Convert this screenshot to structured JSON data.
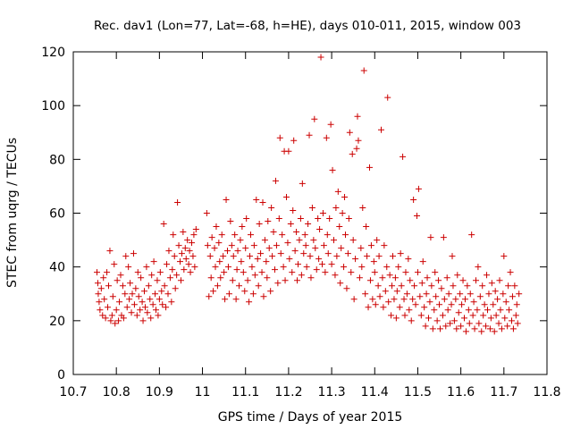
{
  "chart_data": {
    "type": "scatter",
    "title": "Rec. dav1 (Lon=77, Lat=-68, h=HE), days 010-011, 2015, window 003",
    "xlabel": "GPS time / Days of year 2015",
    "ylabel": "STEC from uqrg / TECUs",
    "xlim": [
      10.7,
      11.8
    ],
    "ylim": [
      0,
      120
    ],
    "xticks": [
      "10.7",
      "10.8",
      "10.9",
      "11",
      "11.1",
      "11.2",
      "11.3",
      "11.4",
      "11.5",
      "11.6",
      "11.7",
      "11.8"
    ],
    "yticks": [
      "0",
      "20",
      "40",
      "60",
      "80",
      "100",
      "120"
    ],
    "grid": false,
    "marker": "plus",
    "color": "#cc0000",
    "points": [
      [
        10.755,
        38
      ],
      [
        10.757,
        34
      ],
      [
        10.758,
        30
      ],
      [
        10.76,
        27
      ],
      [
        10.762,
        24
      ],
      [
        10.765,
        32
      ],
      [
        10.768,
        22
      ],
      [
        10.77,
        36
      ],
      [
        10.772,
        28
      ],
      [
        10.775,
        21
      ],
      [
        10.778,
        38
      ],
      [
        10.78,
        25
      ],
      [
        10.782,
        33
      ],
      [
        10.785,
        46
      ],
      [
        10.787,
        20
      ],
      [
        10.79,
        22
      ],
      [
        10.792,
        29
      ],
      [
        10.795,
        41
      ],
      [
        10.797,
        19
      ],
      [
        10.8,
        24
      ],
      [
        10.802,
        35
      ],
      [
        10.805,
        20
      ],
      [
        10.807,
        27
      ],
      [
        10.81,
        37
      ],
      [
        10.812,
        22
      ],
      [
        10.815,
        33
      ],
      [
        10.817,
        21
      ],
      [
        10.82,
        30
      ],
      [
        10.822,
        44
      ],
      [
        10.825,
        25
      ],
      [
        10.828,
        40
      ],
      [
        10.83,
        28
      ],
      [
        10.832,
        34
      ],
      [
        10.835,
        23
      ],
      [
        10.837,
        30
      ],
      [
        10.84,
        45
      ],
      [
        10.842,
        26
      ],
      [
        10.845,
        32
      ],
      [
        10.848,
        22
      ],
      [
        10.85,
        38
      ],
      [
        10.852,
        29
      ],
      [
        10.855,
        24
      ],
      [
        10.857,
        36
      ],
      [
        10.86,
        27
      ],
      [
        10.862,
        20
      ],
      [
        10.865,
        31
      ],
      [
        10.867,
        25
      ],
      [
        10.87,
        40
      ],
      [
        10.872,
        23
      ],
      [
        10.875,
        33
      ],
      [
        10.878,
        28
      ],
      [
        10.88,
        21
      ],
      [
        10.882,
        37
      ],
      [
        10.885,
        26
      ],
      [
        10.887,
        42
      ],
      [
        10.89,
        30
      ],
      [
        10.892,
        24
      ],
      [
        10.895,
        35
      ],
      [
        10.897,
        22
      ],
      [
        10.9,
        28
      ],
      [
        10.902,
        38
      ],
      [
        10.905,
        31
      ],
      [
        10.907,
        26
      ],
      [
        10.91,
        56
      ],
      [
        10.912,
        33
      ],
      [
        10.915,
        25
      ],
      [
        10.917,
        41
      ],
      [
        10.92,
        30
      ],
      [
        10.922,
        46
      ],
      [
        10.925,
        36
      ],
      [
        10.928,
        27
      ],
      [
        10.93,
        39
      ],
      [
        10.932,
        52
      ],
      [
        10.935,
        44
      ],
      [
        10.937,
        32
      ],
      [
        10.94,
        37
      ],
      [
        10.942,
        64
      ],
      [
        10.945,
        48
      ],
      [
        10.948,
        42
      ],
      [
        10.95,
        35
      ],
      [
        10.952,
        45
      ],
      [
        10.955,
        53
      ],
      [
        10.957,
        39
      ],
      [
        10.96,
        47
      ],
      [
        10.962,
        43
      ],
      [
        10.965,
        50
      ],
      [
        10.968,
        41
      ],
      [
        10.97,
        46
      ],
      [
        10.972,
        38
      ],
      [
        10.975,
        49
      ],
      [
        10.978,
        44
      ],
      [
        10.98,
        52
      ],
      [
        10.982,
        40
      ],
      [
        10.985,
        54
      ],
      [
        11.01,
        60
      ],
      [
        11.012,
        48
      ],
      [
        11.015,
        29
      ],
      [
        11.018,
        44
      ],
      [
        11.02,
        36
      ],
      [
        11.022,
        51
      ],
      [
        11.025,
        31
      ],
      [
        11.028,
        47
      ],
      [
        11.03,
        40
      ],
      [
        11.032,
        55
      ],
      [
        11.035,
        33
      ],
      [
        11.038,
        49
      ],
      [
        11.04,
        42
      ],
      [
        11.042,
        36
      ],
      [
        11.045,
        52
      ],
      [
        11.048,
        44
      ],
      [
        11.05,
        38
      ],
      [
        11.052,
        28
      ],
      [
        11.055,
        65
      ],
      [
        11.058,
        46
      ],
      [
        11.06,
        40
      ],
      [
        11.062,
        30
      ],
      [
        11.065,
        57
      ],
      [
        11.068,
        48
      ],
      [
        11.07,
        35
      ],
      [
        11.072,
        44
      ],
      [
        11.075,
        52
      ],
      [
        11.078,
        28
      ],
      [
        11.08,
        39
      ],
      [
        11.082,
        46
      ],
      [
        11.085,
        33
      ],
      [
        11.088,
        50
      ],
      [
        11.09,
        42
      ],
      [
        11.092,
        55
      ],
      [
        11.095,
        38
      ],
      [
        11.098,
        31
      ],
      [
        11.1,
        47
      ],
      [
        11.102,
        58
      ],
      [
        11.105,
        35
      ],
      [
        11.108,
        27
      ],
      [
        11.11,
        44
      ],
      [
        11.112,
        52
      ],
      [
        11.115,
        40
      ],
      [
        11.118,
        30
      ],
      [
        11.12,
        48
      ],
      [
        11.122,
        37
      ],
      [
        11.125,
        65
      ],
      [
        11.128,
        43
      ],
      [
        11.13,
        33
      ],
      [
        11.132,
        56
      ],
      [
        11.135,
        45
      ],
      [
        11.138,
        38
      ],
      [
        11.14,
        64
      ],
      [
        11.142,
        29
      ],
      [
        11.145,
        50
      ],
      [
        11.148,
        42
      ],
      [
        11.15,
        36
      ],
      [
        11.152,
        57
      ],
      [
        11.155,
        47
      ],
      [
        11.158,
        31
      ],
      [
        11.16,
        62
      ],
      [
        11.162,
        44
      ],
      [
        11.165,
        53
      ],
      [
        11.168,
        39
      ],
      [
        11.17,
        72
      ],
      [
        11.172,
        48
      ],
      [
        11.175,
        34
      ],
      [
        11.178,
        58
      ],
      [
        11.18,
        88
      ],
      [
        11.182,
        45
      ],
      [
        11.185,
        52
      ],
      [
        11.188,
        40
      ],
      [
        11.19,
        83
      ],
      [
        11.192,
        35
      ],
      [
        11.195,
        66
      ],
      [
        11.198,
        49
      ],
      [
        11.2,
        83
      ],
      [
        11.202,
        43
      ],
      [
        11.205,
        56
      ],
      [
        11.208,
        38
      ],
      [
        11.21,
        61
      ],
      [
        11.212,
        87
      ],
      [
        11.215,
        46
      ],
      [
        11.218,
        53
      ],
      [
        11.22,
        35
      ],
      [
        11.222,
        41
      ],
      [
        11.225,
        50
      ],
      [
        11.228,
        58
      ],
      [
        11.23,
        37
      ],
      [
        11.232,
        71
      ],
      [
        11.235,
        45
      ],
      [
        11.238,
        52
      ],
      [
        11.24,
        48
      ],
      [
        11.242,
        40
      ],
      [
        11.245,
        56
      ],
      [
        11.248,
        89
      ],
      [
        11.25,
        44
      ],
      [
        11.252,
        36
      ],
      [
        11.255,
        62
      ],
      [
        11.258,
        50
      ],
      [
        11.26,
        95
      ],
      [
        11.262,
        47
      ],
      [
        11.265,
        39
      ],
      [
        11.268,
        58
      ],
      [
        11.27,
        43
      ],
      [
        11.272,
        54
      ],
      [
        11.275,
        118
      ],
      [
        11.278,
        41
      ],
      [
        11.28,
        60
      ],
      [
        11.282,
        48
      ],
      [
        11.285,
        38
      ],
      [
        11.288,
        88
      ],
      [
        11.29,
        52
      ],
      [
        11.292,
        45
      ],
      [
        11.295,
        58
      ],
      [
        11.298,
        93
      ],
      [
        11.3,
        41
      ],
      [
        11.302,
        76
      ],
      [
        11.305,
        50
      ],
      [
        11.308,
        37
      ],
      [
        11.31,
        62
      ],
      [
        11.312,
        44
      ],
      [
        11.315,
        68
      ],
      [
        11.318,
        55
      ],
      [
        11.32,
        34
      ],
      [
        11.322,
        47
      ],
      [
        11.325,
        60
      ],
      [
        11.328,
        40
      ],
      [
        11.33,
        66
      ],
      [
        11.332,
        52
      ],
      [
        11.335,
        32
      ],
      [
        11.338,
        45
      ],
      [
        11.34,
        58
      ],
      [
        11.342,
        90
      ],
      [
        11.345,
        38
      ],
      [
        11.348,
        82
      ],
      [
        11.35,
        50
      ],
      [
        11.352,
        28
      ],
      [
        11.355,
        43
      ],
      [
        11.358,
        84
      ],
      [
        11.36,
        96
      ],
      [
        11.362,
        87
      ],
      [
        11.365,
        36
      ],
      [
        11.368,
        47
      ],
      [
        11.37,
        40
      ],
      [
        11.372,
        62
      ],
      [
        11.375,
        113
      ],
      [
        11.378,
        30
      ],
      [
        11.38,
        55
      ],
      [
        11.382,
        44
      ],
      [
        11.385,
        25
      ],
      [
        11.388,
        77
      ],
      [
        11.39,
        35
      ],
      [
        11.392,
        48
      ],
      [
        11.395,
        28
      ],
      [
        11.398,
        42
      ],
      [
        11.4,
        38
      ],
      [
        11.402,
        26
      ],
      [
        11.405,
        50
      ],
      [
        11.408,
        33
      ],
      [
        11.41,
        44
      ],
      [
        11.412,
        29
      ],
      [
        11.415,
        91
      ],
      [
        11.418,
        36
      ],
      [
        11.42,
        25
      ],
      [
        11.422,
        48
      ],
      [
        11.425,
        31
      ],
      [
        11.428,
        40
      ],
      [
        11.43,
        103
      ],
      [
        11.432,
        27
      ],
      [
        11.435,
        37
      ],
      [
        11.438,
        22
      ],
      [
        11.44,
        33
      ],
      [
        11.442,
        44
      ],
      [
        11.445,
        28
      ],
      [
        11.448,
        36
      ],
      [
        11.45,
        21
      ],
      [
        11.452,
        31
      ],
      [
        11.455,
        40
      ],
      [
        11.458,
        25
      ],
      [
        11.46,
        45
      ],
      [
        11.462,
        33
      ],
      [
        11.465,
        81
      ],
      [
        11.468,
        28
      ],
      [
        11.47,
        22
      ],
      [
        11.472,
        38
      ],
      [
        11.475,
        30
      ],
      [
        11.478,
        43
      ],
      [
        11.48,
        24
      ],
      [
        11.482,
        35
      ],
      [
        11.485,
        20
      ],
      [
        11.488,
        28
      ],
      [
        11.49,
        65
      ],
      [
        11.492,
        33
      ],
      [
        11.495,
        26
      ],
      [
        11.498,
        59
      ],
      [
        11.5,
        38
      ],
      [
        11.502,
        69
      ],
      [
        11.505,
        29
      ],
      [
        11.508,
        22
      ],
      [
        11.51,
        34
      ],
      [
        11.512,
        42
      ],
      [
        11.515,
        25
      ],
      [
        11.518,
        18
      ],
      [
        11.52,
        30
      ],
      [
        11.522,
        36
      ],
      [
        11.525,
        21
      ],
      [
        11.528,
        27
      ],
      [
        11.53,
        51
      ],
      [
        11.532,
        33
      ],
      [
        11.535,
        17
      ],
      [
        11.538,
        24
      ],
      [
        11.54,
        38
      ],
      [
        11.542,
        29
      ],
      [
        11.545,
        20
      ],
      [
        11.548,
        35
      ],
      [
        11.55,
        26
      ],
      [
        11.552,
        17
      ],
      [
        11.555,
        32
      ],
      [
        11.558,
        22
      ],
      [
        11.56,
        51
      ],
      [
        11.562,
        28
      ],
      [
        11.565,
        18
      ],
      [
        11.568,
        36
      ],
      [
        11.57,
        24
      ],
      [
        11.572,
        30
      ],
      [
        11.575,
        19
      ],
      [
        11.578,
        26
      ],
      [
        11.58,
        44
      ],
      [
        11.582,
        33
      ],
      [
        11.585,
        20
      ],
      [
        11.588,
        28
      ],
      [
        11.59,
        17
      ],
      [
        11.592,
        37
      ],
      [
        11.595,
        23
      ],
      [
        11.598,
        30
      ],
      [
        11.6,
        18
      ],
      [
        11.602,
        26
      ],
      [
        11.605,
        35
      ],
      [
        11.608,
        21
      ],
      [
        11.61,
        28
      ],
      [
        11.612,
        16
      ],
      [
        11.615,
        33
      ],
      [
        11.618,
        24
      ],
      [
        11.62,
        19
      ],
      [
        11.622,
        30
      ],
      [
        11.625,
        52
      ],
      [
        11.628,
        22
      ],
      [
        11.63,
        27
      ],
      [
        11.632,
        17
      ],
      [
        11.635,
        35
      ],
      [
        11.638,
        24
      ],
      [
        11.64,
        40
      ],
      [
        11.642,
        19
      ],
      [
        11.645,
        29
      ],
      [
        11.648,
        16
      ],
      [
        11.65,
        33
      ],
      [
        11.652,
        22
      ],
      [
        11.655,
        26
      ],
      [
        11.658,
        18
      ],
      [
        11.66,
        37
      ],
      [
        11.662,
        24
      ],
      [
        11.665,
        30
      ],
      [
        11.668,
        17
      ],
      [
        11.67,
        21
      ],
      [
        11.672,
        34
      ],
      [
        11.675,
        26
      ],
      [
        11.678,
        16
      ],
      [
        11.68,
        31
      ],
      [
        11.682,
        22
      ],
      [
        11.685,
        28
      ],
      [
        11.688,
        19
      ],
      [
        11.69,
        35
      ],
      [
        11.692,
        24
      ],
      [
        11.695,
        17
      ],
      [
        11.698,
        30
      ],
      [
        11.7,
        44
      ],
      [
        11.702,
        21
      ],
      [
        11.705,
        27
      ],
      [
        11.708,
        18
      ],
      [
        11.71,
        33
      ],
      [
        11.712,
        24
      ],
      [
        11.715,
        38
      ],
      [
        11.718,
        20
      ],
      [
        11.72,
        29
      ],
      [
        11.722,
        17
      ],
      [
        11.725,
        33
      ],
      [
        11.728,
        22
      ],
      [
        11.73,
        26
      ],
      [
        11.732,
        19
      ],
      [
        11.735,
        30
      ]
    ]
  }
}
